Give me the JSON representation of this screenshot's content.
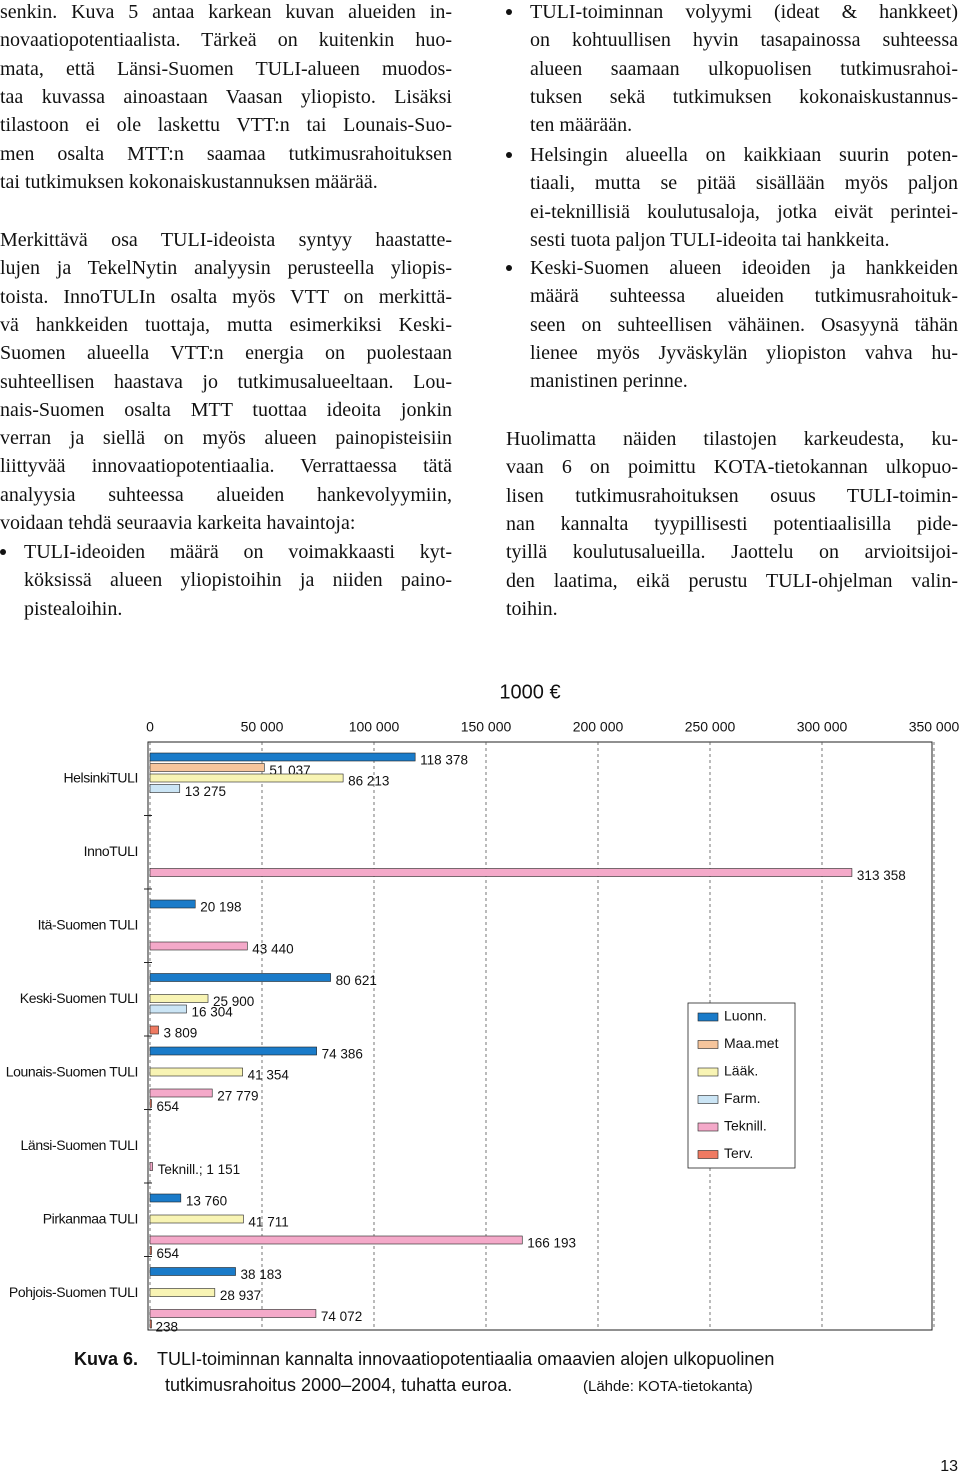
{
  "left_column": {
    "paragraphs": [
      {
        "lines": [
          "senkin. Kuva 5 antaa karkean kuvan alueiden in-",
          "novaatiopotentiaalista. Tärkeä on kuitenkin huo-",
          "mata, että Länsi-Suomen TULI-alueen muodos-",
          "taa kuvassa ainoastaan Vaasan yliopisto. Lisäksi",
          "tilastoon ei ole laskettu VTT:n tai Lounais-Suo-",
          "men osalta MTT:n saamaa tutkimusrahoituksen",
          "tai tutkimuksen kokonaiskustannuksen määrää."
        ]
      },
      {
        "lines": [
          "Merkittävä osa TULI-ideoista syntyy haastatte-",
          "lujen ja TekelNytin analyysin perusteella yliopis-",
          "toista. InnoTULIn osalta myös VTT on merkittä-",
          "vä hankkeiden tuottaja, mutta esimerkiksi Keski-",
          "Suomen alueella VTT:n energia on puolestaan",
          "suhteellisen haastava jo tutkimusalueeltaan. Lou-",
          "nais-Suomen osalta MTT tuottaa ideoita jonkin",
          "verran ja siellä on myös alueen painopisteisiin",
          "liittyvää innovaatiopotentiaalia. Verrattaessa tätä",
          "analyysia suhteessa alueiden hankevolyymiin,",
          "voidaan tehdä seuraavia karkeita havaintoja:"
        ]
      }
    ],
    "bullets": [
      {
        "lines": [
          "TULI-ideoiden määrä on voimakkaasti kyt-",
          "köksissä alueen yliopistoihin ja niiden paino-",
          "pistealoihin."
        ]
      }
    ]
  },
  "right_column": {
    "bullets": [
      {
        "lines": [
          "TULI-toiminnan volyymi (ideat & hankkeet)",
          "on kohtuullisen hyvin tasapainossa suhteessa",
          "alueen saamaan ulkopuolisen tutkimusrahoi-",
          "tuksen sekä tutkimuksen kokonaiskustannus-",
          "ten määrään."
        ]
      },
      {
        "lines": [
          "Helsingin alueella on kaikkiaan suurin poten-",
          "tiaali, mutta se pitää sisällään myös paljon",
          "ei-teknillisiä koulutusaloja, jotka eivät perintei-",
          "sesti tuota paljon TULI-ideoita tai hankkeita."
        ]
      },
      {
        "lines": [
          "Keski-Suomen alueen ideoiden ja hankkeiden",
          "määrä suhteessa alueiden tutkimusrahoituk-",
          "seen on suhteellisen vähäinen. Osasyynä tähän",
          "lienee myös Jyväskylän yliopiston vahva hu-",
          "manistinen perinne."
        ]
      }
    ],
    "paragraphs": [
      {
        "lines": [
          "Huolimatta näiden tilastojen karkeudesta, ku-",
          "vaan 6 on poimittu KOTA-tietokannan ulkopuo-",
          "lisen tutkimusrahoituksen osuus TULI-toimin-",
          "nan kannalta tyypillisesti potentiaalisilla pide-",
          "tyillä koulutusalueilla. Jaottelu on arvioitsijoi-",
          "den laatima, eikä perustu TULI-ohjelman valin-",
          "toihin."
        ]
      }
    ]
  },
  "chart_data": {
    "type": "bar",
    "orientation": "horizontal",
    "title": "1000 €",
    "categories": [
      "HelsinkiTULI",
      "InnoTULI",
      "Itä-Suomen TULI",
      "Keski-Suomen TULI",
      "Lounais-Suomen TULI",
      "Länsi-Suomen TULI",
      "Pirkanmaa TULI",
      "Pohjois-Suomen TULI"
    ],
    "series": [
      {
        "name": "Luonn.",
        "color": "#1a7bc9",
        "values": [
          118378,
          null,
          20198,
          80621,
          74386,
          null,
          13760,
          38183
        ],
        "value_labels": [
          "118 378",
          null,
          "20 198",
          "80 621",
          "74 386",
          null,
          "13 760",
          "38 183"
        ]
      },
      {
        "name": "Maa.met",
        "color": "#f6c59c",
        "values": [
          51037,
          null,
          null,
          null,
          null,
          null,
          null,
          null
        ],
        "value_labels": [
          "51 037",
          null,
          null,
          null,
          null,
          null,
          null,
          null
        ]
      },
      {
        "name": "Lääk.",
        "color": "#f8f4b4",
        "values": [
          86213,
          null,
          null,
          25900,
          41354,
          null,
          41711,
          28937
        ],
        "value_labels": [
          "86 213",
          null,
          null,
          "25 900",
          "41 354",
          null,
          "41 711",
          "28 937"
        ]
      },
      {
        "name": "Farm.",
        "color": "#cbe5f5",
        "values": [
          13275,
          null,
          null,
          16304,
          null,
          null,
          null,
          null
        ],
        "value_labels": [
          "13 275",
          null,
          null,
          "16 304",
          null,
          null,
          null,
          null
        ]
      },
      {
        "name": "Teknill.",
        "color": "#f4a9c9",
        "values": [
          null,
          313358,
          43440,
          null,
          27779,
          1151,
          166193,
          74072
        ],
        "value_labels": [
          null,
          "313 358",
          "43 440",
          null,
          "27 779",
          "Teknill.; 1 151",
          "166 193",
          "74 072"
        ]
      },
      {
        "name": "Terv.",
        "color": "#ef7a62",
        "values": [
          null,
          null,
          null,
          3809,
          654,
          null,
          654,
          238
        ],
        "value_labels": [
          null,
          null,
          null,
          "3 809",
          "654",
          null,
          "654",
          "238"
        ]
      }
    ],
    "xlim": [
      0,
      350000
    ],
    "xticks": [
      0,
      {
        "value": 50000,
        "label": "50 000"
      },
      {
        "value": 100000,
        "label": "100 000"
      },
      {
        "value": 150000,
        "label": "150 000"
      },
      {
        "value": 200000,
        "label": "200 000"
      },
      {
        "value": 250000,
        "label": "250 000"
      },
      {
        "value": 300000,
        "label": "300 000"
      },
      {
        "value": 350000,
        "label": "350 000"
      }
    ],
    "grid": true,
    "legend": "right"
  },
  "caption": {
    "label": "Kuva 6.",
    "lines": [
      "TULI-toiminnan kannalta innovaatiopotentiaalia omaavien alojen ulkopuolinen",
      "tutkimusrahoitus 2000–2004, tuhatta euroa."
    ],
    "source": "(Lähde: KOTA-tietokanta)"
  },
  "page_number": "13"
}
